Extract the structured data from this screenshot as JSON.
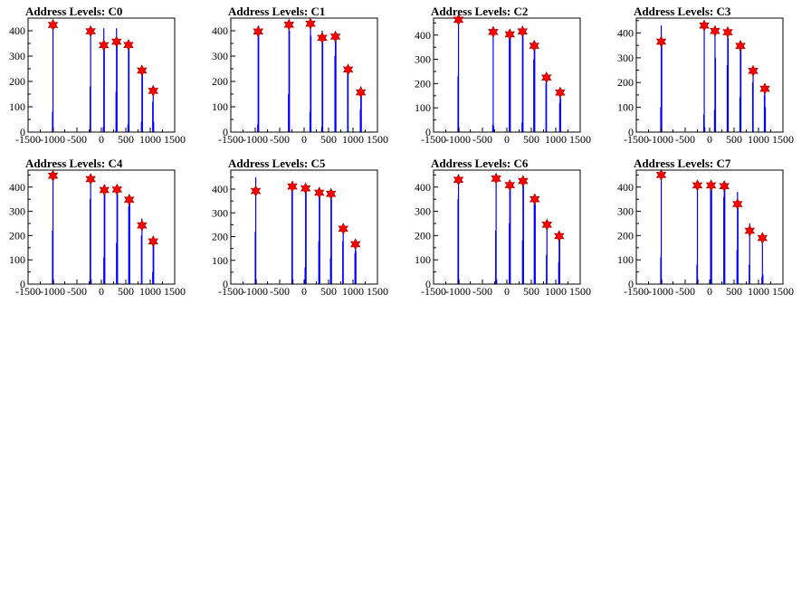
{
  "colors": {
    "histogram": "#0000ff",
    "marker": "#ff0000",
    "frame": "#000000"
  },
  "chart_data": [
    {
      "type": "bar",
      "title": "Address Levels: C0",
      "xlim": [
        -1500,
        1500
      ],
      "ylim": [
        0,
        450
      ],
      "xticks": [
        "-1500",
        "-1000",
        "-500",
        "0",
        "500",
        "1000",
        "1500"
      ],
      "yticks": [
        "0",
        "100",
        "200",
        "300",
        "400"
      ],
      "bins": [
        [
          -1000,
          80
        ],
        [
          -990,
          430
        ],
        [
          -985,
          20
        ],
        [
          -230,
          180
        ],
        [
          -220,
          400
        ],
        [
          40,
          20
        ],
        [
          50,
          410
        ],
        [
          60,
          340
        ],
        [
          300,
          160
        ],
        [
          310,
          410
        ],
        [
          320,
          360
        ],
        [
          545,
          30
        ],
        [
          555,
          350
        ],
        [
          565,
          330
        ],
        [
          820,
          40
        ],
        [
          830,
          245
        ],
        [
          840,
          230
        ],
        [
          1050,
          120
        ],
        [
          1060,
          165
        ],
        [
          1070,
          40
        ]
      ],
      "peaks": [
        [
          -990,
          423
        ],
        [
          -220,
          398
        ],
        [
          50,
          343
        ],
        [
          310,
          357
        ],
        [
          555,
          344
        ],
        [
          830,
          243
        ],
        [
          1060,
          163
        ]
      ]
    },
    {
      "type": "bar",
      "title": "Address Levels: C1",
      "xlim": [
        -1500,
        1500
      ],
      "ylim": [
        0,
        450
      ],
      "xticks": [
        "-1500",
        "-1000",
        "-500",
        "0",
        "500",
        "1000",
        "1500"
      ],
      "yticks": [
        "0",
        "100",
        "200",
        "300",
        "400"
      ],
      "bins": [
        [
          -950,
          30
        ],
        [
          -940,
          400
        ],
        [
          -930,
          420
        ],
        [
          -320,
          150
        ],
        [
          -310,
          420
        ],
        [
          -300,
          400
        ],
        [
          120,
          80
        ],
        [
          130,
          430
        ],
        [
          140,
          380
        ],
        [
          360,
          20
        ],
        [
          370,
          400
        ],
        [
          380,
          360
        ],
        [
          630,
          300
        ],
        [
          640,
          380
        ],
        [
          650,
          360
        ],
        [
          890,
          240
        ],
        [
          900,
          250
        ],
        [
          1150,
          90
        ],
        [
          1160,
          180
        ],
        [
          1170,
          150
        ]
      ],
      "peaks": [
        [
          -940,
          397
        ],
        [
          -310,
          424
        ],
        [
          130,
          428
        ],
        [
          370,
          372
        ],
        [
          640,
          377
        ],
        [
          900,
          247
        ],
        [
          1160,
          157
        ]
      ]
    },
    {
      "type": "bar",
      "title": "Address Levels: C2",
      "xlim": [
        -1500,
        1500
      ],
      "ylim": [
        0,
        470
      ],
      "xticks": [
        "-1500",
        "-1000",
        "-500",
        "0",
        "500",
        "1000",
        "1500"
      ],
      "yticks": [
        "0",
        "100",
        "200",
        "300",
        "400"
      ],
      "bins": [
        [
          -1000,
          230
        ],
        [
          -990,
          460
        ],
        [
          -980,
          20
        ],
        [
          -290,
          30
        ],
        [
          -280,
          420
        ],
        [
          -270,
          25
        ],
        [
          50,
          390
        ],
        [
          60,
          420
        ],
        [
          70,
          400
        ],
        [
          310,
          40
        ],
        [
          320,
          420
        ],
        [
          330,
          400
        ],
        [
          550,
          300
        ],
        [
          560,
          360
        ],
        [
          570,
          340
        ],
        [
          800,
          200
        ],
        [
          810,
          220
        ],
        [
          1080,
          120
        ],
        [
          1090,
          165
        ],
        [
          1100,
          140
        ]
      ],
      "peaks": [
        [
          -990,
          463
        ],
        [
          -280,
          413
        ],
        [
          60,
          403
        ],
        [
          320,
          415
        ],
        [
          560,
          356
        ],
        [
          810,
          225
        ],
        [
          1090,
          163
        ]
      ]
    },
    {
      "type": "bar",
      "title": "Address Levels: C3",
      "xlim": [
        -1500,
        1500
      ],
      "ylim": [
        0,
        460
      ],
      "xticks": [
        "-1500",
        "-1000",
        "-500",
        "0",
        "500",
        "1000",
        "1500"
      ],
      "yticks": [
        "0",
        "100",
        "200",
        "300",
        "400"
      ],
      "bins": [
        [
          -1000,
          100
        ],
        [
          -990,
          430
        ],
        [
          -980,
          360
        ],
        [
          -120,
          70
        ],
        [
          -110,
          430
        ],
        [
          -100,
          20
        ],
        [
          100,
          90
        ],
        [
          110,
          410
        ],
        [
          120,
          300
        ],
        [
          360,
          270
        ],
        [
          370,
          410
        ],
        [
          380,
          380
        ],
        [
          620,
          140
        ],
        [
          630,
          350
        ],
        [
          640,
          330
        ],
        [
          880,
          200
        ],
        [
          890,
          250
        ],
        [
          1120,
          150
        ],
        [
          1130,
          175
        ],
        [
          1140,
          100
        ]
      ],
      "peaks": [
        [
          -990,
          365
        ],
        [
          -110,
          430
        ],
        [
          110,
          408
        ],
        [
          370,
          403
        ],
        [
          630,
          348
        ],
        [
          890,
          247
        ],
        [
          1130,
          175
        ]
      ]
    },
    {
      "type": "bar",
      "title": "Address Levels: C4",
      "xlim": [
        -1500,
        1500
      ],
      "ylim": [
        0,
        470
      ],
      "xticks": [
        "-1500",
        "-1000",
        "-500",
        "0",
        "500",
        "1000",
        "1500"
      ],
      "yticks": [
        "0",
        "100",
        "200",
        "300",
        "400"
      ],
      "bins": [
        [
          -1000,
          220
        ],
        [
          -990,
          450
        ],
        [
          -980,
          20
        ],
        [
          -230,
          350
        ],
        [
          -220,
          430
        ],
        [
          -210,
          20
        ],
        [
          50,
          110
        ],
        [
          60,
          390
        ],
        [
          70,
          410
        ],
        [
          310,
          170
        ],
        [
          320,
          390
        ],
        [
          330,
          370
        ],
        [
          560,
          320
        ],
        [
          570,
          350
        ],
        [
          580,
          330
        ],
        [
          820,
          200
        ],
        [
          830,
          270
        ],
        [
          1050,
          50
        ],
        [
          1060,
          175
        ],
        [
          1070,
          160
        ]
      ],
      "peaks": [
        [
          -990,
          447
        ],
        [
          -220,
          433
        ],
        [
          60,
          388
        ],
        [
          320,
          390
        ],
        [
          570,
          348
        ],
        [
          830,
          242
        ],
        [
          1060,
          176
        ]
      ]
    },
    {
      "type": "bar",
      "title": "Address Levels: C5",
      "xlim": [
        -1500,
        1500
      ],
      "ylim": [
        0,
        480
      ],
      "xticks": [
        "-1500",
        "-1000",
        "-500",
        "0",
        "500",
        "1000",
        "1500"
      ],
      "yticks": [
        "0",
        "100",
        "200",
        "300",
        "400"
      ],
      "bins": [
        [
          -1000,
          220
        ],
        [
          -990,
          450
        ],
        [
          -980,
          20
        ],
        [
          -250,
          400
        ],
        [
          -240,
          420
        ],
        [
          -230,
          20
        ],
        [
          20,
          70
        ],
        [
          30,
          400
        ],
        [
          40,
          410
        ],
        [
          300,
          180
        ],
        [
          310,
          390
        ],
        [
          320,
          370
        ],
        [
          540,
          110
        ],
        [
          550,
          380
        ],
        [
          560,
          360
        ],
        [
          790,
          180
        ],
        [
          800,
          235
        ],
        [
          1040,
          130
        ],
        [
          1050,
          170
        ],
        [
          1060,
          140
        ]
      ],
      "peaks": [
        [
          -990,
          392
        ],
        [
          -240,
          411
        ],
        [
          30,
          403
        ],
        [
          310,
          385
        ],
        [
          550,
          380
        ],
        [
          800,
          233
        ],
        [
          1050,
          168
        ]
      ]
    },
    {
      "type": "bar",
      "title": "Address Levels: C6",
      "xlim": [
        -1500,
        1500
      ],
      "ylim": [
        0,
        470
      ],
      "xticks": [
        "-1500",
        "-1000",
        "-500",
        "0",
        "500",
        "1000",
        "1500"
      ],
      "yticks": [
        "0",
        "100",
        "200",
        "300",
        "400"
      ],
      "bins": [
        [
          -1000,
          350
        ],
        [
          -990,
          440
        ],
        [
          -980,
          20
        ],
        [
          -230,
          220
        ],
        [
          -220,
          440
        ],
        [
          -210,
          20
        ],
        [
          50,
          250
        ],
        [
          60,
          410
        ],
        [
          70,
          400
        ],
        [
          320,
          180
        ],
        [
          330,
          430
        ],
        [
          340,
          410
        ],
        [
          560,
          340
        ],
        [
          570,
          360
        ],
        [
          580,
          330
        ],
        [
          810,
          120
        ],
        [
          820,
          250
        ],
        [
          1060,
          90
        ],
        [
          1070,
          200
        ],
        [
          1080,
          180
        ]
      ],
      "peaks": [
        [
          -990,
          430
        ],
        [
          -220,
          435
        ],
        [
          60,
          408
        ],
        [
          330,
          425
        ],
        [
          570,
          350
        ],
        [
          820,
          245
        ],
        [
          1070,
          198
        ]
      ]
    },
    {
      "type": "bar",
      "title": "Address Levels: C7",
      "xlim": [
        -1500,
        1500
      ],
      "ylim": [
        0,
        470
      ],
      "xticks": [
        "-1500",
        "-1000",
        "-500",
        "0",
        "500",
        "1000",
        "1500"
      ],
      "yticks": [
        "0",
        "100",
        "200",
        "300",
        "400"
      ],
      "bins": [
        [
          -1000,
          110
        ],
        [
          -990,
          450
        ],
        [
          -980,
          20
        ],
        [
          -260,
          80
        ],
        [
          -250,
          400
        ],
        [
          -240,
          20
        ],
        [
          20,
          400
        ],
        [
          30,
          410
        ],
        [
          40,
          390
        ],
        [
          290,
          360
        ],
        [
          300,
          410
        ],
        [
          310,
          390
        ],
        [
          560,
          140
        ],
        [
          570,
          380
        ],
        [
          580,
          340
        ],
        [
          810,
          80
        ],
        [
          820,
          250
        ],
        [
          1070,
          30
        ],
        [
          1080,
          190
        ],
        [
          1090,
          40
        ]
      ],
      "peaks": [
        [
          -990,
          450
        ],
        [
          -250,
          407
        ],
        [
          30,
          407
        ],
        [
          300,
          404
        ],
        [
          570,
          330
        ],
        [
          820,
          220
        ],
        [
          1080,
          190
        ]
      ]
    }
  ]
}
